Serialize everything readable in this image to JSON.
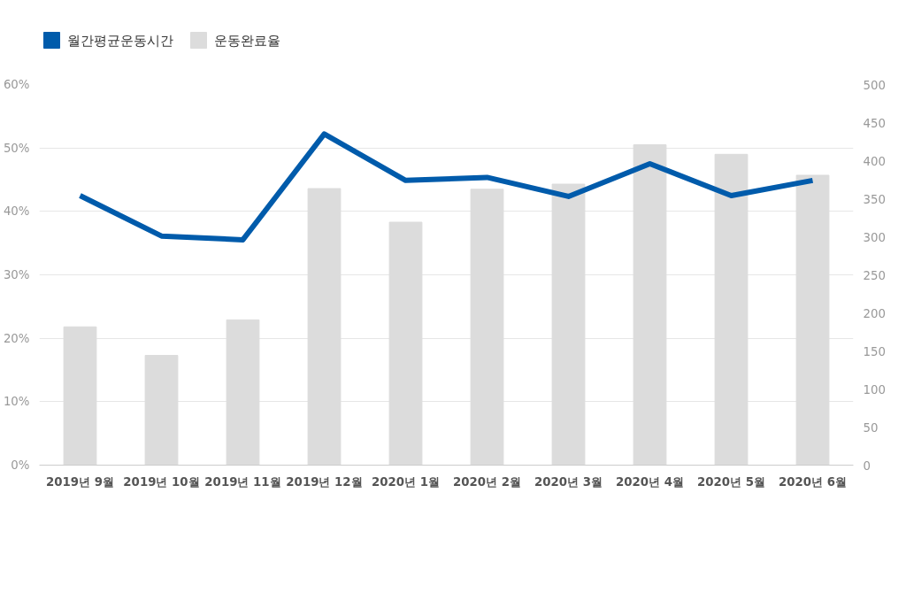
{
  "chart_data": {
    "type": "bar",
    "categories": [
      "2019년 9월",
      "2019년 10월",
      "2019년 11월",
      "2019년 12월",
      "2020년 1월",
      "2020년 2월",
      "2020년 3월",
      "2020년 4월",
      "2020년 5월",
      "2020년 6월"
    ],
    "series": [
      {
        "name": "월간평균운동시간",
        "type": "line",
        "axis": "y2",
        "color": "#005bab",
        "values": [
          354,
          301,
          296,
          435,
          374,
          378,
          353,
          396,
          354,
          374
        ]
      },
      {
        "name": "운동완료율",
        "color": "#dcdcdc",
        "values": [
          21.8,
          17.3,
          22.9,
          43.6,
          38.3,
          43.5,
          44.3,
          50.5,
          49.0,
          45.7
        ]
      }
    ],
    "ylim": [
      0,
      60
    ],
    "yticks": [
      {
        "value": 0,
        "label": "0%"
      },
      {
        "value": 10,
        "label": "10%"
      },
      {
        "value": 20,
        "label": "20%"
      },
      {
        "value": 30,
        "label": "30%"
      },
      {
        "value": 40,
        "label": "40%"
      },
      {
        "value": 50,
        "label": "50%"
      },
      {
        "value": 60,
        "label": "60%"
      }
    ],
    "y2lim": [
      0,
      500
    ],
    "y2ticks": [
      0,
      50,
      100,
      150,
      200,
      250,
      300,
      350,
      400,
      450,
      500
    ],
    "grid": "y",
    "legend": "top left",
    "marker": "none",
    "line_style": "solid"
  }
}
